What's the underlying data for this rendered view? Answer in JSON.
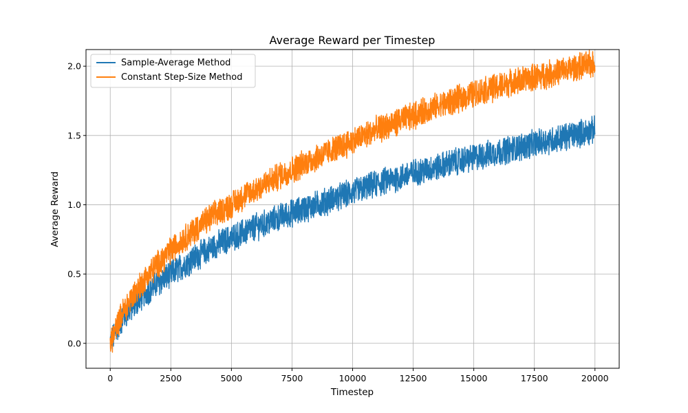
{
  "chart_data": {
    "type": "line",
    "title": "Average Reward per Timestep",
    "xlabel": "Timestep",
    "ylabel": "Average Reward",
    "xlim": [
      -1000,
      21000
    ],
    "ylim": [
      -0.18,
      2.12
    ],
    "xticks": [
      0,
      2500,
      5000,
      7500,
      10000,
      12500,
      15000,
      17500,
      20000
    ],
    "yticks": [
      0.0,
      0.5,
      1.0,
      1.5,
      2.0
    ],
    "xtick_labels": [
      "0",
      "2500",
      "5000",
      "7500",
      "10000",
      "12500",
      "15000",
      "17500",
      "20000"
    ],
    "ytick_labels": [
      "0.0",
      "0.5",
      "1.0",
      "1.5",
      "2.0"
    ],
    "grid": true,
    "legend_position": "top-left",
    "x": [
      0,
      500,
      1000,
      1500,
      2000,
      2500,
      3000,
      3500,
      4000,
      4500,
      5000,
      5500,
      6000,
      6500,
      7000,
      7500,
      8000,
      8500,
      9000,
      9500,
      10000,
      10500,
      11000,
      11500,
      12000,
      12500,
      13000,
      13500,
      14000,
      14500,
      15000,
      15500,
      16000,
      16500,
      17000,
      17500,
      18000,
      18500,
      19000,
      19500,
      20000
    ],
    "series": [
      {
        "name": "Sample-Average Method",
        "color": "#1f77b4",
        "values": [
          0.0,
          0.18,
          0.28,
          0.37,
          0.44,
          0.5,
          0.56,
          0.62,
          0.67,
          0.72,
          0.76,
          0.8,
          0.84,
          0.87,
          0.91,
          0.94,
          0.97,
          1.0,
          1.03,
          1.06,
          1.09,
          1.12,
          1.15,
          1.18,
          1.2,
          1.23,
          1.25,
          1.27,
          1.3,
          1.32,
          1.34,
          1.36,
          1.38,
          1.4,
          1.42,
          1.44,
          1.46,
          1.48,
          1.5,
          1.52,
          1.54
        ],
        "band": 0.09
      },
      {
        "name": "Constant Step-Size Method",
        "color": "#ff7f0e",
        "values": [
          0.0,
          0.22,
          0.36,
          0.48,
          0.58,
          0.67,
          0.75,
          0.82,
          0.89,
          0.95,
          1.0,
          1.06,
          1.11,
          1.16,
          1.21,
          1.25,
          1.3,
          1.34,
          1.38,
          1.42,
          1.46,
          1.5,
          1.54,
          1.57,
          1.61,
          1.64,
          1.68,
          1.71,
          1.74,
          1.77,
          1.8,
          1.83,
          1.85,
          1.88,
          1.9,
          1.92,
          1.94,
          1.96,
          1.98,
          2.0,
          2.02
        ],
        "band": 0.09
      }
    ]
  }
}
